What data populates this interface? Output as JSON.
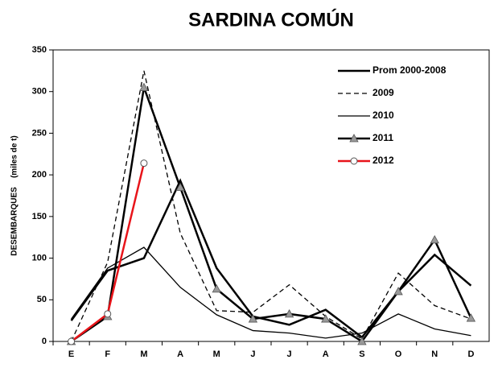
{
  "chart_data": {
    "type": "line",
    "title": "SARDINA COMÚN",
    "ylabel": "DESEMBARQUES    (miles de t)",
    "categories": [
      "E",
      "F",
      "M",
      "A",
      "M",
      "J",
      "J",
      "A",
      "S",
      "O",
      "N",
      "D"
    ],
    "ylim": [
      0,
      350
    ],
    "yticks": [
      0,
      50,
      100,
      150,
      200,
      250,
      300,
      350
    ],
    "series": [
      {
        "name": "Prom 2000-2008",
        "color": "#000000",
        "width": 2.5,
        "dash": "none",
        "marker": "none",
        "values": [
          25,
          85,
          100,
          193,
          88,
          30,
          20,
          38,
          5,
          60,
          104,
          67
        ]
      },
      {
        "name": "2009",
        "color": "#000000",
        "width": 1.3,
        "dash": "6,4",
        "marker": "none",
        "values": [
          0,
          95,
          325,
          130,
          37,
          35,
          68,
          30,
          3,
          82,
          43,
          27
        ]
      },
      {
        "name": "2010",
        "color": "#000000",
        "width": 1.3,
        "dash": "none",
        "marker": "none",
        "values": [
          27,
          88,
          113,
          65,
          32,
          13,
          10,
          4,
          10,
          33,
          15,
          7
        ]
      },
      {
        "name": "2011",
        "color": "#000000",
        "width": 2.5,
        "dash": "none",
        "marker": "triangle",
        "values": [
          0,
          30,
          305,
          185,
          63,
          27,
          33,
          27,
          0,
          60,
          122,
          28
        ]
      },
      {
        "name": "2012",
        "color": "#e8141a",
        "width": 2.5,
        "dash": "none",
        "marker": "circle",
        "values": [
          0,
          33,
          214,
          null,
          null,
          null,
          null,
          null,
          null,
          null,
          null,
          null
        ]
      }
    ]
  }
}
